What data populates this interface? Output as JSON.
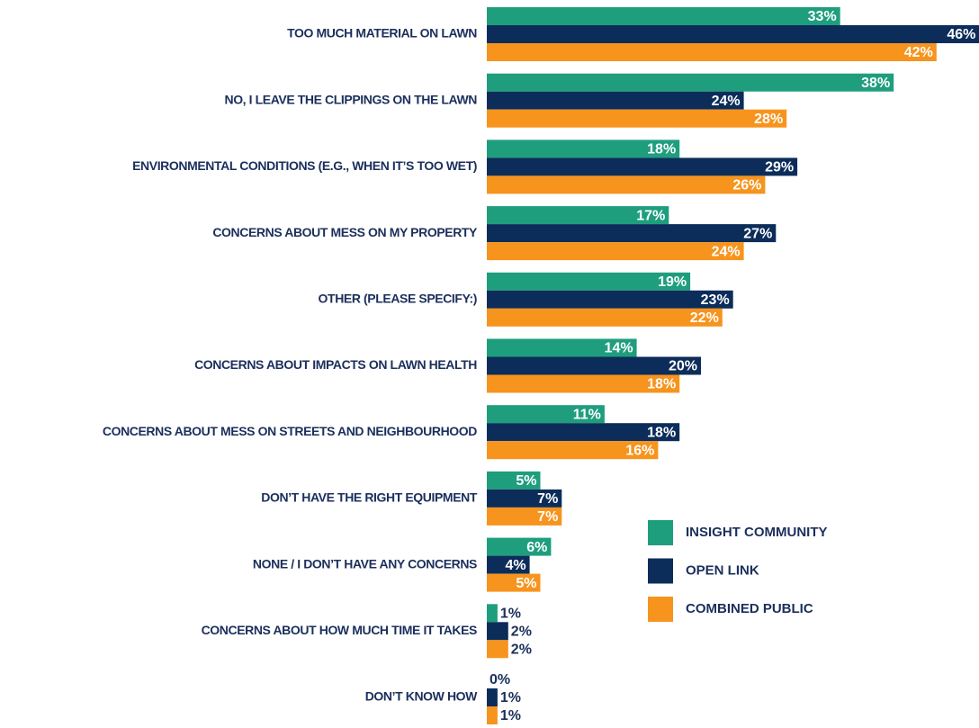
{
  "chart_data": {
    "type": "bar",
    "orientation": "horizontal",
    "categories": [
      "TOO MUCH MATERIAL ON LAWN",
      "NO, I LEAVE THE CLIPPINGS ON THE LAWN",
      "ENVIRONMENTAL CONDITIONS (E.G., WHEN IT’S TOO WET)",
      "CONCERNS ABOUT MESS ON MY PROPERTY",
      "OTHER (PLEASE SPECIFY:)",
      "CONCERNS ABOUT IMPACTS ON LAWN HEALTH",
      "CONCERNS ABOUT MESS ON STREETS AND NEIGHBOURHOOD",
      "DON’T HAVE THE RIGHT EQUIPMENT",
      "NONE / I DON’T HAVE ANY CONCERNS",
      "CONCERNS ABOUT HOW MUCH TIME IT TAKES",
      "DON’T KNOW HOW"
    ],
    "series": [
      {
        "name": "INSIGHT COMMUNITY",
        "color": "#1f9e7e",
        "values": [
          33,
          38,
          18,
          17,
          19,
          14,
          11,
          5,
          6,
          1,
          0
        ],
        "value_labels": [
          "33%",
          "38%",
          "18%",
          "17%",
          "19%",
          "14%",
          "11%",
          "5%",
          "6%",
          "1%",
          "0%"
        ]
      },
      {
        "name": "OPEN LINK",
        "color": "#0c2d5a",
        "values": [
          46,
          24,
          29,
          27,
          23,
          20,
          18,
          7,
          4,
          2,
          1
        ],
        "value_labels": [
          "46%",
          "24%",
          "29%",
          "27%",
          "23%",
          "20%",
          "18%",
          "7%",
          "4%",
          "2%",
          "1%"
        ]
      },
      {
        "name": "COMBINED PUBLIC",
        "color": "#f7941d",
        "values": [
          42,
          28,
          26,
          24,
          22,
          18,
          16,
          7,
          5,
          2,
          1
        ],
        "value_labels": [
          "42%",
          "28%",
          "26%",
          "24%",
          "22%",
          "18%",
          "16%",
          "7%",
          "5%",
          "2%",
          "1%"
        ]
      }
    ]
  }
}
